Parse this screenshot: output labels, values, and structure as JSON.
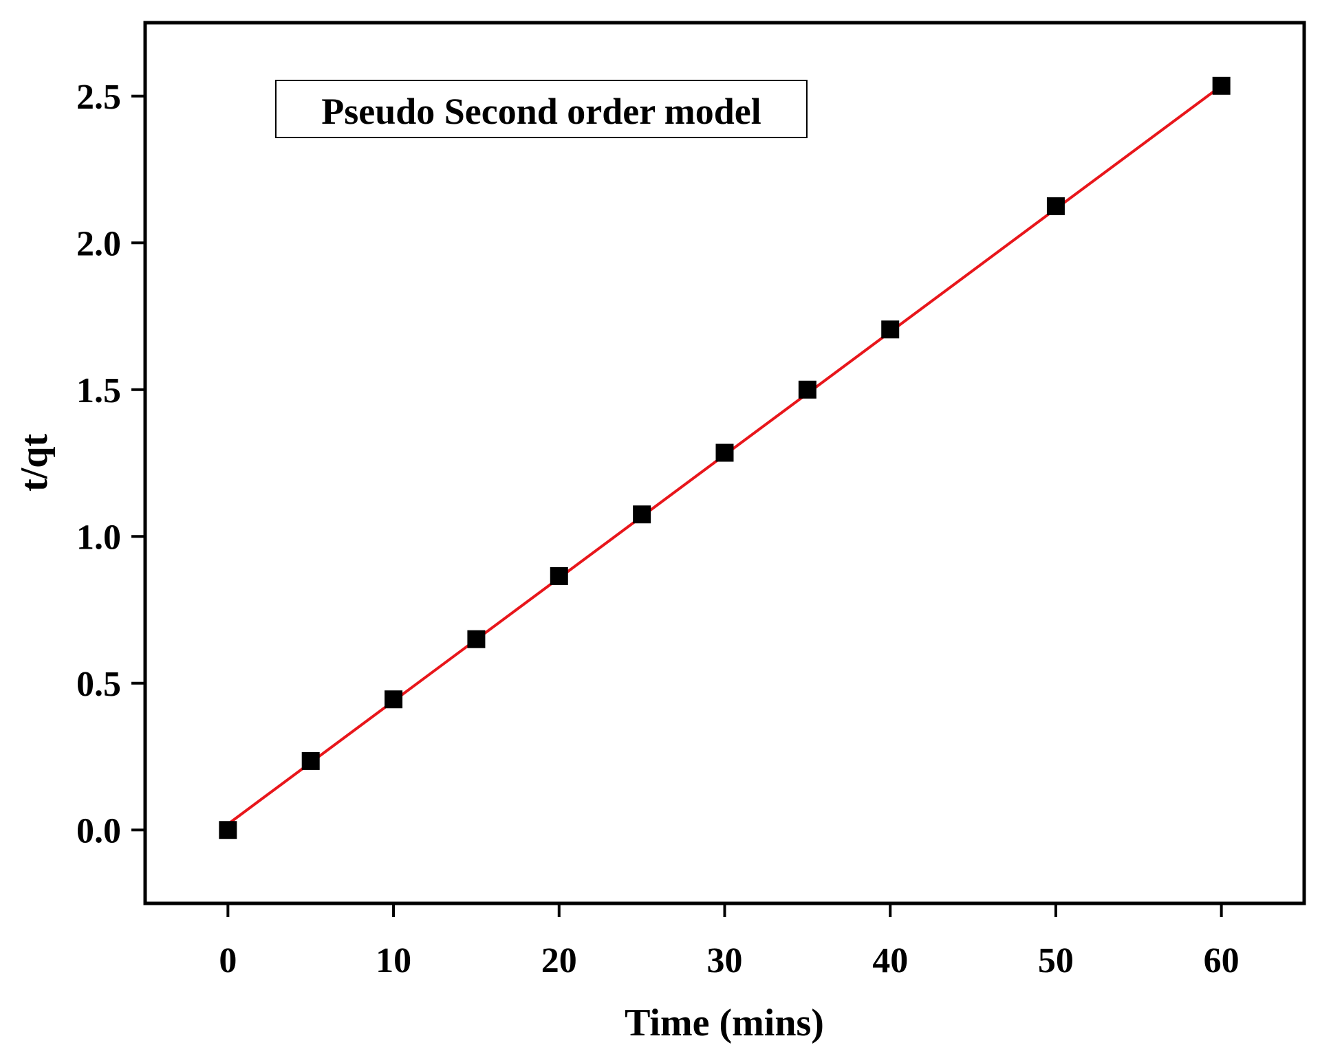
{
  "chart_data": {
    "type": "scatter",
    "title": "Pseudo Second order model",
    "xlabel": "Time (mins)",
    "ylabel": "t/qt",
    "xlim": [
      -5,
      65
    ],
    "ylim": [
      -0.25,
      2.75
    ],
    "xticks": [
      0,
      10,
      20,
      30,
      40,
      50,
      60
    ],
    "yticks": [
      0.0,
      0.5,
      1.0,
      1.5,
      2.0,
      2.5
    ],
    "xtick_labels": [
      "0",
      "10",
      "20",
      "30",
      "40",
      "50",
      "60"
    ],
    "ytick_labels": [
      "0.0",
      "0.5",
      "1.0",
      "1.5",
      "2.0",
      "2.5"
    ],
    "grid": false,
    "series": [
      {
        "marker": "square",
        "color": "#000000",
        "x": [
          0,
          5,
          10,
          15,
          20,
          25,
          30,
          35,
          40,
          50,
          60
        ],
        "y": [
          0.0,
          0.235,
          0.445,
          0.65,
          0.865,
          1.075,
          1.285,
          1.5,
          1.705,
          2.125,
          2.535
        ]
      }
    ],
    "fit_line": {
      "color": "#e8161b",
      "x": [
        0,
        60
      ],
      "y": [
        0.02,
        2.535
      ]
    }
  }
}
